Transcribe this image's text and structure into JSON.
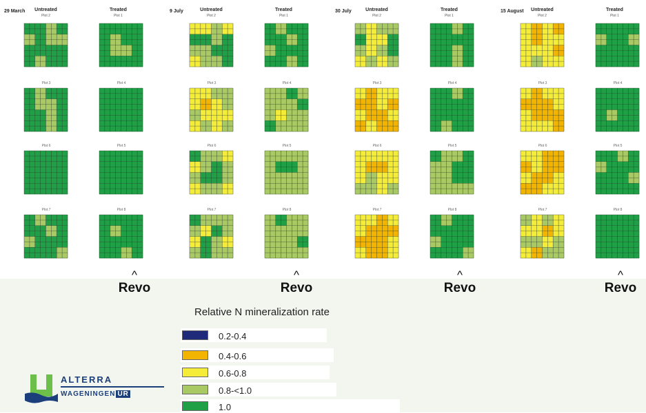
{
  "colors": {
    "c02": "#1f2a7a",
    "c04": "#f2b400",
    "c06": "#f4ec39",
    "c08": "#a8c964",
    "c10": "#1fa046",
    "grid": "#2d3a2d"
  },
  "dates": [
    "29 March",
    "9 July",
    "30 July",
    "15 August"
  ],
  "column_headers": {
    "untreated": "Untreated",
    "treated": "Treated"
  },
  "plot_labels": {
    "untreated": [
      "Plot 2",
      "Plot 3",
      "Plot 6",
      "Plot 7"
    ],
    "treated": [
      "Plot 1",
      "Plot 4",
      "Plot 5",
      "Plot 8"
    ]
  },
  "markers": {
    "caret": "^",
    "label": "Revo"
  },
  "legend": {
    "title": "Relative N mineralization rate",
    "items": [
      {
        "label": "0.2-0.4",
        "color": "#1f2a7a"
      },
      {
        "label": "0.4-0.6",
        "color": "#f2b400"
      },
      {
        "label": "0.6-0.8",
        "color": "#f4ec39"
      },
      {
        "label": "0.8-<1.0",
        "color": "#a8c964"
      },
      {
        "label": "1.0",
        "color": "#1fa046"
      }
    ]
  },
  "logo": {
    "name": "ALTERRA",
    "sub": "WAGENINGEN",
    "ur": "UR"
  },
  "chart_data": {
    "type": "heatmap",
    "description_units": "relative N mineralization class per plot grid (dominant classes, approximate)",
    "classes": [
      "0.2-0.4",
      "0.4-0.6",
      "0.6-0.8",
      "0.8-<1.0",
      "1.0"
    ],
    "panels": [
      {
        "date": "29 March",
        "plot": "Plot 2",
        "treatment": "Untreated",
        "cells": [
          "1.0",
          "1.0",
          "0.8-<1.0",
          "1.0",
          "0.8-<1.0",
          "1.0",
          "0.8-<1.0",
          "0.8-<1.0",
          "1.0",
          "1.0",
          "1.0",
          "1.0",
          "1.0",
          "0.8-<1.0",
          "1.0",
          "1.0"
        ]
      },
      {
        "date": "29 March",
        "plot": "Plot 1",
        "treatment": "Treated",
        "cells": [
          "1.0",
          "1.0",
          "1.0",
          "1.0",
          "1.0",
          "0.8-<1.0",
          "1.0",
          "1.0",
          "1.0",
          "0.8-<1.0",
          "0.8-<1.0",
          "1.0",
          "1.0",
          "1.0",
          "1.0",
          "1.0"
        ]
      },
      {
        "date": "29 March",
        "plot": "Plot 3",
        "treatment": "Untreated",
        "cells": [
          "1.0",
          "0.8-<1.0",
          "1.0",
          "1.0",
          "1.0",
          "0.8-<1.0",
          "0.8-<1.0",
          "1.0",
          "1.0",
          "1.0",
          "0.8-<1.0",
          "1.0",
          "1.0",
          "1.0",
          "0.8-<1.0",
          "1.0"
        ]
      },
      {
        "date": "29 March",
        "plot": "Plot 4",
        "treatment": "Treated",
        "cells": [
          "1.0",
          "1.0",
          "1.0",
          "1.0",
          "1.0",
          "1.0",
          "1.0",
          "1.0",
          "1.0",
          "1.0",
          "1.0",
          "1.0",
          "1.0",
          "1.0",
          "1.0",
          "1.0"
        ]
      },
      {
        "date": "29 March",
        "plot": "Plot 6",
        "treatment": "Untreated",
        "cells": [
          "1.0",
          "1.0",
          "1.0",
          "1.0",
          "1.0",
          "1.0",
          "1.0",
          "1.0",
          "1.0",
          "1.0",
          "1.0",
          "1.0",
          "1.0",
          "1.0",
          "1.0",
          "1.0"
        ]
      },
      {
        "date": "29 March",
        "plot": "Plot 5",
        "treatment": "Treated",
        "cells": [
          "1.0",
          "1.0",
          "1.0",
          "1.0",
          "1.0",
          "1.0",
          "1.0",
          "1.0",
          "1.0",
          "1.0",
          "1.0",
          "1.0",
          "1.0",
          "1.0",
          "1.0",
          "1.0"
        ]
      },
      {
        "date": "29 March",
        "plot": "Plot 7",
        "treatment": "Untreated",
        "cells": [
          "1.0",
          "0.8-<1.0",
          "1.0",
          "1.0",
          "1.0",
          "1.0",
          "0.8-<1.0",
          "1.0",
          "0.8-<1.0",
          "1.0",
          "1.0",
          "1.0",
          "1.0",
          "1.0",
          "1.0",
          "0.8-<1.0"
        ]
      },
      {
        "date": "29 March",
        "plot": "Plot 8",
        "treatment": "Treated",
        "cells": [
          "1.0",
          "1.0",
          "1.0",
          "1.0",
          "1.0",
          "0.8-<1.0",
          "1.0",
          "1.0",
          "1.0",
          "1.0",
          "1.0",
          "1.0",
          "1.0",
          "1.0",
          "0.8-<1.0",
          "1.0"
        ]
      },
      {
        "date": "9 July",
        "plot": "Plot 2",
        "treatment": "Untreated",
        "cells": [
          "0.6-0.8",
          "0.6-0.8",
          "0.8-<1.0",
          "0.6-0.8",
          "1.0",
          "1.0",
          "0.8-<1.0",
          "1.0",
          "0.8-<1.0",
          "0.8-<1.0",
          "1.0",
          "1.0",
          "0.6-0.8",
          "0.8-<1.0",
          "0.8-<1.0",
          "1.0"
        ]
      },
      {
        "date": "9 July",
        "plot": "Plot 1",
        "treatment": "Treated",
        "cells": [
          "1.0",
          "0.8-<1.0",
          "1.0",
          "1.0",
          "1.0",
          "1.0",
          "0.8-<1.0",
          "1.0",
          "0.8-<1.0",
          "1.0",
          "1.0",
          "1.0",
          "1.0",
          "1.0",
          "0.8-<1.0",
          "1.0"
        ]
      },
      {
        "date": "9 July",
        "plot": "Plot 3",
        "treatment": "Untreated",
        "cells": [
          "0.6-0.8",
          "0.6-0.8",
          "0.8-<1.0",
          "0.8-<1.0",
          "0.6-0.8",
          "0.4-0.6",
          "0.6-0.8",
          "0.8-<1.0",
          "0.8-<1.0",
          "0.6-0.8",
          "0.6-0.8",
          "0.6-0.8",
          "0.6-0.8",
          "0.8-<1.0",
          "0.6-0.8",
          "0.8-<1.0"
        ]
      },
      {
        "date": "9 July",
        "plot": "Plot 4",
        "treatment": "Treated",
        "cells": [
          "0.8-<1.0",
          "0.8-<1.0",
          "1.0",
          "0.8-<1.0",
          "0.8-<1.0",
          "0.8-<1.0",
          "0.8-<1.0",
          "1.0",
          "0.8-<1.0",
          "0.6-0.8",
          "0.8-<1.0",
          "0.8-<1.0",
          "1.0",
          "0.8-<1.0",
          "0.8-<1.0",
          "0.8-<1.0"
        ]
      },
      {
        "date": "9 July",
        "plot": "Plot 6",
        "treatment": "Untreated",
        "cells": [
          "1.0",
          "0.8-<1.0",
          "0.8-<1.0",
          "0.6-0.8",
          "0.6-0.8",
          "0.8-<1.0",
          "1.0",
          "0.8-<1.0",
          "0.8-<1.0",
          "1.0",
          "1.0",
          "0.8-<1.0",
          "0.6-0.8",
          "0.8-<1.0",
          "0.8-<1.0",
          "0.6-0.8"
        ]
      },
      {
        "date": "9 July",
        "plot": "Plot 5",
        "treatment": "Treated",
        "cells": [
          "0.8-<1.0",
          "0.8-<1.0",
          "0.8-<1.0",
          "0.8-<1.0",
          "0.8-<1.0",
          "1.0",
          "1.0",
          "0.8-<1.0",
          "0.8-<1.0",
          "0.8-<1.0",
          "0.8-<1.0",
          "0.8-<1.0",
          "0.8-<1.0",
          "0.8-<1.0",
          "0.8-<1.0",
          "0.8-<1.0"
        ]
      },
      {
        "date": "9 July",
        "plot": "Plot 7",
        "treatment": "Untreated",
        "cells": [
          "1.0",
          "0.8-<1.0",
          "0.8-<1.0",
          "0.8-<1.0",
          "0.8-<1.0",
          "0.6-0.8",
          "1.0",
          "0.8-<1.0",
          "0.6-0.8",
          "1.0",
          "0.8-<1.0",
          "0.6-0.8",
          "0.8-<1.0",
          "1.0",
          "0.8-<1.0",
          "0.8-<1.0"
        ]
      },
      {
        "date": "9 July",
        "plot": "Plot 8",
        "treatment": "Treated",
        "cells": [
          "0.8-<1.0",
          "1.0",
          "0.8-<1.0",
          "0.8-<1.0",
          "0.8-<1.0",
          "0.8-<1.0",
          "0.8-<1.0",
          "0.8-<1.0",
          "0.8-<1.0",
          "0.8-<1.0",
          "0.8-<1.0",
          "1.0",
          "0.8-<1.0",
          "0.8-<1.0",
          "0.8-<1.0",
          "0.8-<1.0"
        ]
      },
      {
        "date": "30 July",
        "plot": "Plot 2",
        "treatment": "Untreated",
        "cells": [
          "0.8-<1.0",
          "0.6-0.8",
          "0.8-<1.0",
          "0.8-<1.0",
          "1.0",
          "0.6-0.8",
          "0.6-0.8",
          "1.0",
          "0.8-<1.0",
          "0.6-0.8",
          "0.8-<1.0",
          "1.0",
          "0.6-0.8",
          "0.8-<1.0",
          "0.6-0.8",
          "0.8-<1.0"
        ]
      },
      {
        "date": "30 July",
        "plot": "Plot 1",
        "treatment": "Treated",
        "cells": [
          "1.0",
          "1.0",
          "0.8-<1.0",
          "1.0",
          "1.0",
          "1.0",
          "1.0",
          "1.0",
          "1.0",
          "1.0",
          "0.8-<1.0",
          "1.0",
          "1.0",
          "1.0",
          "0.8-<1.0",
          "1.0"
        ]
      },
      {
        "date": "30 July",
        "plot": "Plot 3",
        "treatment": "Untreated",
        "cells": [
          "0.6-0.8",
          "0.4-0.6",
          "0.6-0.8",
          "0.6-0.8",
          "0.4-0.6",
          "0.4-0.6",
          "0.6-0.8",
          "0.4-0.6",
          "0.6-0.8",
          "0.4-0.6",
          "0.4-0.6",
          "0.6-0.8",
          "0.4-0.6",
          "0.6-0.8",
          "0.4-0.6",
          "0.4-0.6"
        ]
      },
      {
        "date": "30 July",
        "plot": "Plot 4",
        "treatment": "Treated",
        "cells": [
          "1.0",
          "1.0",
          "0.8-<1.0",
          "1.0",
          "1.0",
          "1.0",
          "1.0",
          "1.0",
          "1.0",
          "1.0",
          "1.0",
          "1.0",
          "1.0",
          "0.8-<1.0",
          "1.0",
          "1.0"
        ]
      },
      {
        "date": "30 July",
        "plot": "Plot 6",
        "treatment": "Untreated",
        "cells": [
          "0.6-0.8",
          "0.6-0.8",
          "0.6-0.8",
          "0.6-0.8",
          "0.6-0.8",
          "0.4-0.6",
          "0.4-0.6",
          "0.6-0.8",
          "0.6-0.8",
          "0.8-<1.0",
          "0.6-0.8",
          "0.6-0.8",
          "0.8-<1.0",
          "0.8-<1.0",
          "0.6-0.8",
          "0.8-<1.0"
        ]
      },
      {
        "date": "30 July",
        "plot": "Plot 5",
        "treatment": "Treated",
        "cells": [
          "1.0",
          "0.8-<1.0",
          "0.8-<1.0",
          "1.0",
          "0.8-<1.0",
          "0.8-<1.0",
          "1.0",
          "1.0",
          "0.8-<1.0",
          "0.8-<1.0",
          "1.0",
          "1.0",
          "0.8-<1.0",
          "0.8-<1.0",
          "0.8-<1.0",
          "0.8-<1.0"
        ]
      },
      {
        "date": "30 July",
        "plot": "Plot 7",
        "treatment": "Untreated",
        "cells": [
          "0.6-0.8",
          "0.6-0.8",
          "0.4-0.6",
          "0.6-0.8",
          "0.6-0.8",
          "0.4-0.6",
          "0.4-0.6",
          "0.4-0.6",
          "0.4-0.6",
          "0.4-0.6",
          "0.4-0.6",
          "0.6-0.8",
          "0.6-0.8",
          "0.4-0.6",
          "0.4-0.6",
          "0.6-0.8"
        ]
      },
      {
        "date": "30 July",
        "plot": "Plot 8",
        "treatment": "Treated",
        "cells": [
          "1.0",
          "0.8-<1.0",
          "1.0",
          "1.0",
          "1.0",
          "1.0",
          "1.0",
          "1.0",
          "0.8-<1.0",
          "1.0",
          "1.0",
          "1.0",
          "1.0",
          "1.0",
          "1.0",
          "0.8-<1.0"
        ]
      },
      {
        "date": "15 August",
        "plot": "Plot 2",
        "treatment": "Untreated",
        "cells": [
          "0.6-0.8",
          "0.4-0.6",
          "0.6-0.8",
          "0.4-0.6",
          "0.6-0.8",
          "0.4-0.6",
          "0.6-0.8",
          "0.6-0.8",
          "0.6-0.8",
          "0.6-0.8",
          "0.6-0.8",
          "0.4-0.6",
          "0.6-0.8",
          "0.8-<1.0",
          "0.6-0.8",
          "0.6-0.8"
        ]
      },
      {
        "date": "15 August",
        "plot": "Plot 1",
        "treatment": "Treated",
        "cells": [
          "1.0",
          "1.0",
          "1.0",
          "1.0",
          "0.8-<1.0",
          "1.0",
          "1.0",
          "0.8-<1.0",
          "1.0",
          "1.0",
          "1.0",
          "1.0",
          "1.0",
          "1.0",
          "1.0",
          "1.0"
        ]
      },
      {
        "date": "15 August",
        "plot": "Plot 3",
        "treatment": "Untreated",
        "cells": [
          "0.6-0.8",
          "0.4-0.6",
          "0.6-0.8",
          "0.6-0.8",
          "0.4-0.6",
          "0.4-0.6",
          "0.4-0.6",
          "0.6-0.8",
          "0.6-0.8",
          "0.4-0.6",
          "0.4-0.6",
          "0.4-0.6",
          "0.6-0.8",
          "0.6-0.8",
          "0.6-0.8",
          "0.4-0.6"
        ]
      },
      {
        "date": "15 August",
        "plot": "Plot 4",
        "treatment": "Treated",
        "cells": [
          "1.0",
          "1.0",
          "1.0",
          "1.0",
          "1.0",
          "1.0",
          "1.0",
          "1.0",
          "1.0",
          "0.8-<1.0",
          "1.0",
          "1.0",
          "1.0",
          "1.0",
          "1.0",
          "1.0"
        ]
      },
      {
        "date": "15 August",
        "plot": "Plot 6",
        "treatment": "Untreated",
        "cells": [
          "0.6-0.8",
          "0.6-0.8",
          "0.4-0.6",
          "0.4-0.6",
          "0.4-0.6",
          "0.6-0.8",
          "0.4-0.6",
          "0.4-0.6",
          "0.6-0.8",
          "0.4-0.6",
          "0.4-0.6",
          "0.6-0.8",
          "0.4-0.6",
          "0.4-0.6",
          "0.6-0.8",
          "0.6-0.8"
        ]
      },
      {
        "date": "15 August",
        "plot": "Plot 5",
        "treatment": "Treated",
        "cells": [
          "1.0",
          "1.0",
          "0.8-<1.0",
          "1.0",
          "0.8-<1.0",
          "1.0",
          "1.0",
          "1.0",
          "1.0",
          "1.0",
          "1.0",
          "0.8-<1.0",
          "1.0",
          "1.0",
          "1.0",
          "1.0"
        ]
      },
      {
        "date": "15 August",
        "plot": "Plot 7",
        "treatment": "Untreated",
        "cells": [
          "0.8-<1.0",
          "0.6-0.8",
          "0.8-<1.0",
          "0.6-0.8",
          "0.6-0.8",
          "0.6-0.8",
          "0.4-0.6",
          "0.6-0.8",
          "0.8-<1.0",
          "0.8-<1.0",
          "0.6-0.8",
          "0.8-<1.0",
          "0.6-0.8",
          "0.4-0.6",
          "0.8-<1.0",
          "0.8-<1.0"
        ]
      },
      {
        "date": "15 August",
        "plot": "Plot 8",
        "treatment": "Treated",
        "cells": [
          "1.0",
          "1.0",
          "1.0",
          "1.0",
          "1.0",
          "1.0",
          "1.0",
          "1.0",
          "1.0",
          "1.0",
          "1.0",
          "1.0",
          "1.0",
          "1.0",
          "1.0",
          "1.0"
        ]
      }
    ]
  }
}
